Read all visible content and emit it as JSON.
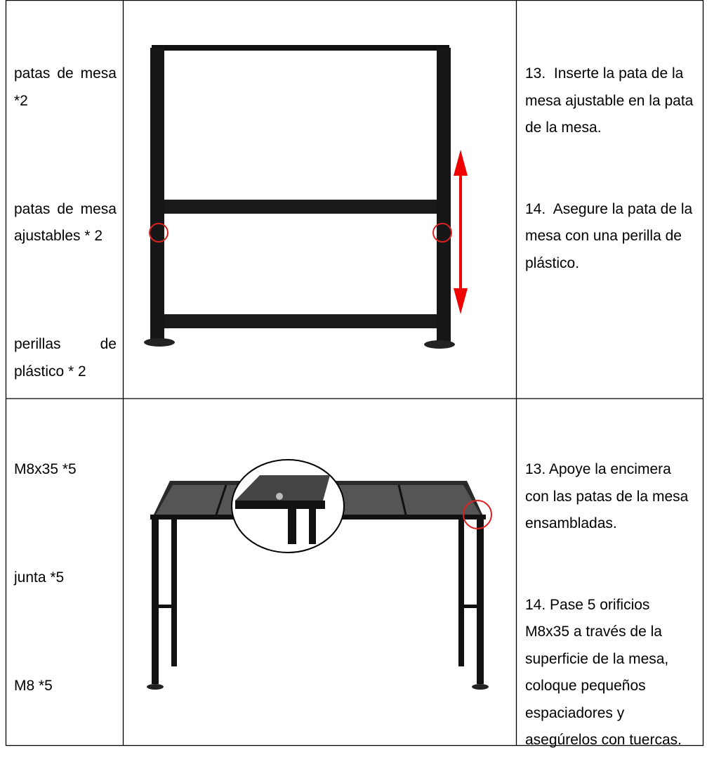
{
  "table": {
    "rows": [
      {
        "parts": [
          "patas de mesa *2",
          "patas de mesa ajustables * 2",
          "perillas de plástico * 2"
        ],
        "steps": [
          "13.  Inserte la pata de la mesa ajustable en la pata de la mesa.",
          "14.  Asegure la pata de la mesa con una perilla de plástico."
        ]
      },
      {
        "parts": [
          "M8x35 *5",
          "junta *5",
          "M8 *5"
        ],
        "steps": [
          "13. Apoye la encimera con las patas de la mesa ensambladas.",
          "14. Pase 5 orificios M8x35 a través de la superficie de la mesa, coloque pequeños espaciadores y asegúrelos con tuercas."
        ]
      }
    ]
  }
}
